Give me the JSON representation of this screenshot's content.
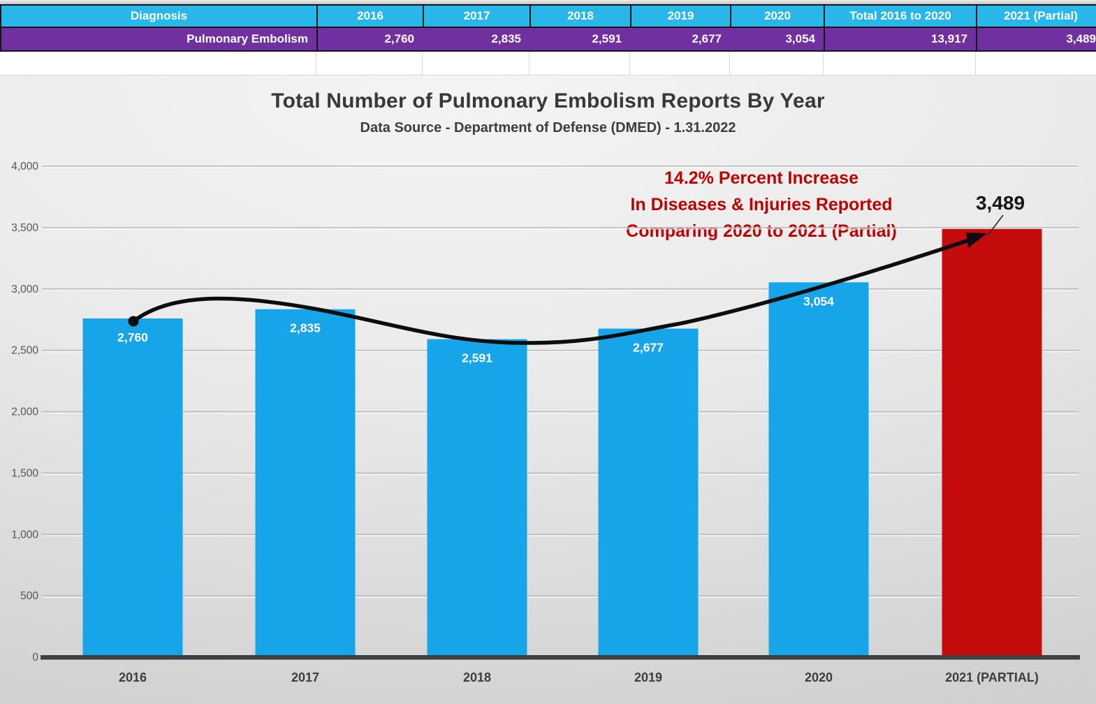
{
  "table": {
    "headers": [
      "Diagnosis",
      "2016",
      "2017",
      "2018",
      "2019",
      "2020",
      "Total 2016 to 2020",
      "2021 (Partial)"
    ],
    "row": {
      "diagnosis": "Pulmonary Embolism",
      "values": [
        "2,760",
        "2,835",
        "2,591",
        "2,677",
        "3,054",
        "13,917",
        "3,489"
      ]
    }
  },
  "chart_data": {
    "type": "bar",
    "title": "Total Number of Pulmonary Embolism Reports By Year",
    "subtitle": "Data Source - Department of Defense (DMED) - 1.31.2022",
    "categories": [
      "2016",
      "2017",
      "2018",
      "2019",
      "2020",
      "2021 (PARTIAL)"
    ],
    "values": [
      2760,
      2835,
      2591,
      2677,
      3054,
      3489
    ],
    "value_labels": [
      "2,760",
      "2,835",
      "2,591",
      "2,677",
      "3,054",
      "3,489"
    ],
    "highlight_index": 5,
    "ylim": [
      0,
      4000
    ],
    "yticks": [
      0,
      500,
      1000,
      1500,
      2000,
      2500,
      3000,
      3500,
      4000
    ],
    "ytick_labels": [
      "0",
      "500",
      "1,000",
      "1,500",
      "2,000",
      "2,500",
      "3,000",
      "3,500",
      "4,000"
    ],
    "grid": true,
    "legend": false,
    "annotation": {
      "lines": [
        "14.2% Percent Increase",
        "In Diseases & Injuries Reported",
        "Comparing 2020 to 2021 (Partial)"
      ],
      "color": "#C00000"
    },
    "colors": {
      "bar": "#17A5E9",
      "highlight": "#C50C0C",
      "header_fill": "#29B7EA",
      "row_fill": "#7030A0",
      "label_inside": "#FFFFFF",
      "label_outside": "#151515",
      "trend_line": "#0d0d0d"
    }
  }
}
